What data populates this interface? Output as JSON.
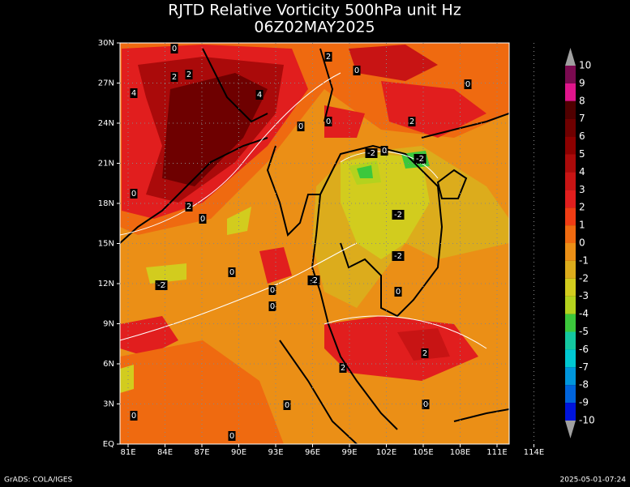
{
  "title": "RJTD Relative Vorticity 500hPa unit Hz",
  "subtitle": "06Z02MAY2025",
  "lon_labels": [
    "81E",
    "84E",
    "87E",
    "90E",
    "93E",
    "96E",
    "99E",
    "102E",
    "105E",
    "108E",
    "111E",
    "114E"
  ],
  "lat_labels": [
    "30N",
    "27N",
    "24N",
    "21N",
    "18N",
    "15N",
    "12N",
    "9N",
    "6N",
    "3N",
    "EQ"
  ],
  "colorbar": {
    "labels": [
      "10",
      "9",
      "8",
      "7",
      "6",
      "5",
      "4",
      "3",
      "2",
      "1",
      "0",
      "-1",
      "-2",
      "-3",
      "-4",
      "-5",
      "-6",
      "-7",
      "-8",
      "-9",
      "-10"
    ],
    "colors": [
      "#7a0a50",
      "#e0148c",
      "#500000",
      "#6e0000",
      "#8c0000",
      "#aa0a0a",
      "#c81414",
      "#e11e1e",
      "#f03c14",
      "#ef6a10",
      "#eb8f16",
      "#dcac1c",
      "#d2cc1e",
      "#b4d21e",
      "#3cc83c",
      "#14c8a0",
      "#00c8d2",
      "#0096dc",
      "#0064dc",
      "#0014dc"
    ]
  },
  "contour_labels": [
    "0",
    "2",
    "0",
    "0",
    "2",
    "2",
    "4",
    "4",
    "0",
    "0",
    "2",
    "-2",
    "0",
    "-2",
    "0",
    "2",
    "0",
    "-2",
    "-2",
    "0",
    "-2",
    "-2",
    "0",
    "0",
    "0",
    "2",
    "2",
    "0",
    "0",
    "0",
    "0"
  ],
  "footer_left": "GrADS: COLA/IGES",
  "footer_right": "2025-05-01-07:24"
}
